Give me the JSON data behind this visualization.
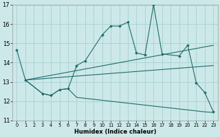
{
  "xlabel": "Humidex (Indice chaleur)",
  "background_color": "#cce8e8",
  "grid_color": "#add4d4",
  "line_color": "#1e6b6b",
  "xlim": [
    -0.5,
    23.5
  ],
  "ylim": [
    11,
    17
  ],
  "xticks": [
    0,
    1,
    2,
    3,
    4,
    5,
    6,
    7,
    8,
    9,
    10,
    11,
    12,
    13,
    14,
    15,
    16,
    17,
    18,
    19,
    20,
    21,
    22,
    23
  ],
  "yticks": [
    11,
    12,
    13,
    14,
    15,
    16,
    17
  ],
  "series_main": {
    "x": [
      0,
      1,
      3,
      4,
      5,
      6,
      7,
      8,
      10,
      11,
      12,
      13,
      14,
      15,
      16,
      17,
      19,
      20,
      21,
      22,
      23
    ],
    "y": [
      14.65,
      13.1,
      12.4,
      12.3,
      12.6,
      12.65,
      13.85,
      14.1,
      15.45,
      15.9,
      15.9,
      16.1,
      14.5,
      14.4,
      17.0,
      14.45,
      14.35,
      14.9,
      12.95,
      12.45,
      11.45
    ]
  },
  "series_bottom": {
    "x": [
      1,
      3,
      4,
      5,
      6,
      7,
      8,
      9,
      10,
      11,
      12,
      13,
      14,
      15,
      16,
      17,
      18,
      19,
      20,
      21,
      22,
      23
    ],
    "y": [
      13.1,
      12.4,
      12.3,
      12.6,
      12.65,
      12.2,
      12.15,
      12.1,
      12.05,
      12.0,
      11.95,
      11.9,
      11.85,
      11.8,
      11.75,
      11.7,
      11.65,
      11.6,
      11.55,
      11.5,
      11.45,
      11.42
    ]
  },
  "series_trend1": {
    "x": [
      1,
      23
    ],
    "y": [
      13.1,
      14.9
    ]
  },
  "series_trend2": {
    "x": [
      1,
      23
    ],
    "y": [
      13.1,
      13.85
    ]
  }
}
